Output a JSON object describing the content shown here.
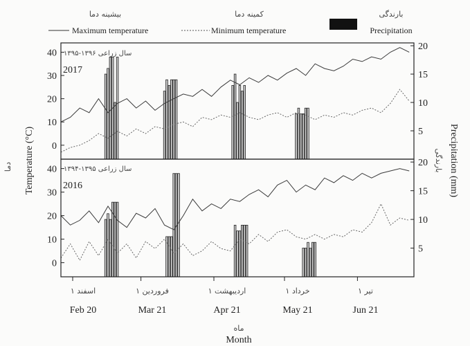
{
  "legend": {
    "max_fa": "بیشینه دما",
    "max_en": "Maximum temperature",
    "min_fa": "کمینه دما",
    "min_en": "Minimum temperature",
    "precip_fa": "بارندگی",
    "precip_en": "Precipitation"
  },
  "axes": {
    "y_left": "Temperature (°C)",
    "y_left_fa": "دما",
    "y_right": "Precipitation (mm)",
    "y_right_fa": "بارندگی",
    "x": "Month",
    "x_fa": "ماه",
    "x_ticks_en": [
      "Feb 20",
      "Mar 21",
      "Apr 21",
      "May 21",
      "Jun 21"
    ],
    "x_ticks_fa": [
      "۱ اسفند",
      "۱ فروردین",
      "۱ اردیبهشت",
      "۱ خرداد",
      "۱ تیر"
    ],
    "y_left_ticks": [
      0,
      10,
      20,
      30,
      40
    ],
    "y_right_ticks": [
      5,
      10,
      15,
      20
    ]
  },
  "colors": {
    "max_line": "#3a3a3a",
    "min_line": "#666666",
    "bar_fill": "#c8c8c8",
    "bar_stroke": "#222222"
  },
  "chart_data": [
    {
      "type": "line",
      "title": "2017",
      "subtitle": "سال زراعی ۱۳۹۶-۱۳۹۵",
      "xlim": [
        0,
        150
      ],
      "ylim_left": [
        -6,
        44
      ],
      "ylim_right": [
        0,
        20.5
      ],
      "series": [
        {
          "name": "Maximum temperature",
          "axis": "left",
          "style": "solid",
          "x": [
            0,
            4,
            8,
            12,
            16,
            20,
            24,
            28,
            32,
            36,
            40,
            44,
            48,
            52,
            56,
            60,
            64,
            68,
            72,
            76,
            80,
            84,
            88,
            92,
            96,
            100,
            104,
            108,
            112,
            116,
            120,
            124,
            128,
            132,
            136,
            140,
            144,
            148
          ],
          "values": [
            10,
            12,
            16,
            14,
            20,
            14,
            18,
            20,
            16,
            19,
            15,
            18,
            20,
            22,
            21,
            24,
            21,
            25,
            28,
            26,
            29,
            27,
            30,
            28,
            31,
            33,
            30,
            35,
            33,
            32,
            34,
            37,
            36,
            38,
            37,
            40,
            42,
            40
          ]
        },
        {
          "name": "Minimum temperature",
          "axis": "left",
          "style": "dotted",
          "x": [
            0,
            4,
            8,
            12,
            16,
            20,
            24,
            28,
            32,
            36,
            40,
            44,
            48,
            52,
            56,
            60,
            64,
            68,
            72,
            76,
            80,
            84,
            88,
            92,
            96,
            100,
            104,
            108,
            112,
            116,
            120,
            124,
            128,
            132,
            136,
            140,
            144,
            148
          ],
          "values": [
            -3,
            -1,
            0,
            2,
            5,
            3,
            6,
            4,
            7,
            5,
            8,
            7,
            9,
            10,
            8,
            12,
            11,
            13,
            12,
            14,
            12,
            11,
            13,
            14,
            12,
            14,
            13,
            11,
            13,
            12,
            14,
            13,
            15,
            16,
            14,
            18,
            24,
            19
          ]
        },
        {
          "name": "Precipitation",
          "axis": "right",
          "style": "bar",
          "x": [
            19,
            20,
            21,
            22,
            23,
            24,
            44,
            45,
            46,
            47,
            48,
            49,
            73,
            74,
            75,
            76,
            77,
            78,
            100,
            101,
            102,
            103,
            104,
            105
          ],
          "values": [
            15,
            16,
            18,
            18,
            10,
            18,
            12,
            14,
            13,
            14,
            14,
            14,
            13,
            15,
            10,
            13,
            12,
            13,
            8,
            9,
            8,
            8,
            9,
            9
          ]
        }
      ]
    },
    {
      "type": "line",
      "title": "2016",
      "subtitle": "سال زراعی ۱۳۹۵-۱۳۹۴",
      "xlim": [
        0,
        150
      ],
      "ylim_left": [
        -6,
        44
      ],
      "ylim_right": [
        0,
        20.5
      ],
      "series": [
        {
          "name": "Maximum temperature",
          "axis": "left",
          "style": "solid",
          "x": [
            0,
            4,
            8,
            12,
            16,
            20,
            24,
            28,
            32,
            36,
            40,
            44,
            48,
            52,
            56,
            60,
            64,
            68,
            72,
            76,
            80,
            84,
            88,
            92,
            96,
            100,
            104,
            108,
            112,
            116,
            120,
            124,
            128,
            132,
            136,
            140,
            144,
            148
          ],
          "values": [
            20,
            16,
            18,
            22,
            17,
            24,
            18,
            15,
            21,
            19,
            23,
            16,
            14,
            20,
            27,
            22,
            25,
            23,
            27,
            26,
            29,
            31,
            28,
            33,
            35,
            30,
            33,
            31,
            36,
            34,
            37,
            35,
            38,
            36,
            38,
            39,
            40,
            39
          ]
        },
        {
          "name": "Minimum temperature",
          "axis": "left",
          "style": "dotted",
          "x": [
            0,
            4,
            8,
            12,
            16,
            20,
            24,
            28,
            32,
            36,
            40,
            44,
            48,
            52,
            56,
            60,
            64,
            68,
            72,
            76,
            80,
            84,
            88,
            92,
            96,
            100,
            104,
            108,
            112,
            116,
            120,
            124,
            128,
            132,
            136,
            140,
            144,
            148
          ],
          "values": [
            2,
            8,
            1,
            9,
            3,
            10,
            4,
            8,
            2,
            9,
            6,
            10,
            4,
            8,
            3,
            5,
            9,
            6,
            5,
            10,
            8,
            12,
            9,
            13,
            14,
            11,
            10,
            12,
            10,
            12,
            11,
            14,
            13,
            17,
            25,
            16,
            19,
            18
          ]
        },
        {
          "name": "Precipitation",
          "axis": "right",
          "style": "bar",
          "x": [
            19,
            20,
            21,
            22,
            23,
            24,
            45,
            46,
            47,
            48,
            49,
            50,
            74,
            75,
            76,
            77,
            78,
            79,
            103,
            104,
            105,
            106,
            107,
            108
          ],
          "values": [
            10,
            11,
            10,
            13,
            13,
            13,
            7,
            7,
            7,
            18,
            18,
            18,
            9,
            8,
            8,
            9,
            9,
            9,
            5,
            5,
            6,
            5,
            6,
            6
          ]
        }
      ]
    }
  ]
}
